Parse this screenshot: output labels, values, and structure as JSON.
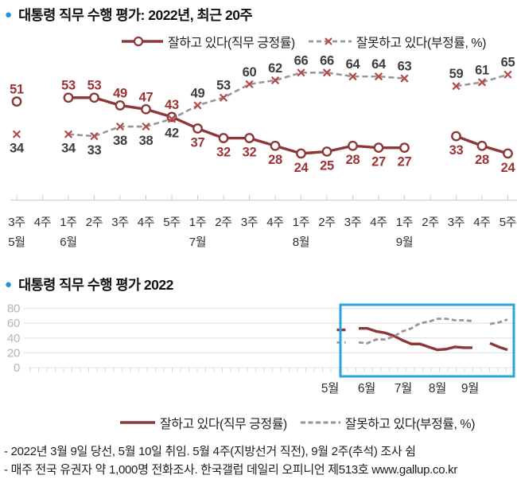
{
  "page": {
    "bullet": "●",
    "title1": "대통령 직무 수행 평가: 2022년, 최근 20주",
    "title2": "대통령 직무 수행 평가 2022",
    "footnote1": "- 2022년 3월 9일 당선, 5월 10일 취임. 5월 4주(지방선거 직전), 9월 2주(추석) 조사 쉼",
    "footnote2": "- 매주 전국 유권자 약 1,000명 전화조사. 한국갤럽 데일리 오피니언 제513호 www.gallup.co.kr"
  },
  "legend": {
    "positive": "잘하고 있다(직무 긍정률)",
    "negative": "잘못하고 있다(부정률, %)"
  },
  "colors": {
    "positive_line": "#8c3838",
    "positive_label": "#9c3434",
    "negative_line": "#979797",
    "negative_label": "#3e3e3e",
    "x_marker": "#b34a4a",
    "highlight_box": "#2ba4dd",
    "bullet_blue": "#1b95d8",
    "grid": "#e7e7e7",
    "axis_gray": "#cccccc",
    "tick_gray": "#d8d8d8",
    "ytick_label": "#b5b5b5",
    "week_label": "#2f2f2f"
  },
  "chart_data": [
    {
      "type": "line",
      "title": "대통령 직무 수행 평가: 2022년, 최근 20주",
      "x_week_labels": [
        "3주",
        "4주",
        "1주",
        "2주",
        "3주",
        "4주",
        "5주",
        "1주",
        "2주",
        "3주",
        "4주",
        "1주",
        "2주",
        "3주",
        "4주",
        "1주",
        "2주",
        "3주",
        "4주",
        "5주"
      ],
      "x_month_labels": [
        {
          "label": "5월",
          "week_index": 0
        },
        {
          "label": "6월",
          "week_index": 2
        },
        {
          "label": "7월",
          "week_index": 7
        },
        {
          "label": "8월",
          "week_index": 11
        },
        {
          "label": "9월",
          "week_index": 15
        }
      ],
      "data_labels": true,
      "series": [
        {
          "name": "잘하고 있다(직무 긍정률)",
          "marker": "circle",
          "line": "solid",
          "values": [
            51,
            null,
            53,
            53,
            49,
            47,
            43,
            37,
            32,
            32,
            28,
            24,
            25,
            28,
            27,
            27,
            null,
            33,
            28,
            24
          ]
        },
        {
          "name": "잘못하고 있다(부정률, %)",
          "marker": "x",
          "line": "dashed",
          "values": [
            34,
            null,
            34,
            33,
            38,
            38,
            42,
            49,
            53,
            60,
            62,
            66,
            66,
            64,
            64,
            63,
            null,
            59,
            61,
            65
          ]
        }
      ]
    },
    {
      "type": "line",
      "title": "대통령 직무 수행 평가 2022",
      "ylim": [
        0,
        80
      ],
      "yticks": [
        0,
        20,
        40,
        60,
        80
      ],
      "grid": true,
      "highlight_box": "5월 3주 ~ 9월 5주",
      "x_month_labels": [
        "5월",
        "6월",
        "7월",
        "8월",
        "9월"
      ],
      "series": [
        {
          "name": "잘하고 있다(직무 긍정률)",
          "line": "solid",
          "values": [
            51,
            null,
            53,
            53,
            49,
            47,
            43,
            37,
            32,
            32,
            28,
            24,
            25,
            28,
            27,
            27,
            null,
            33,
            28,
            24
          ]
        },
        {
          "name": "잘못하고 있다(부정률, %)",
          "line": "dashed",
          "values": [
            34,
            null,
            34,
            33,
            38,
            38,
            42,
            49,
            53,
            60,
            62,
            66,
            66,
            64,
            64,
            63,
            null,
            59,
            61,
            65
          ]
        }
      ]
    }
  ]
}
